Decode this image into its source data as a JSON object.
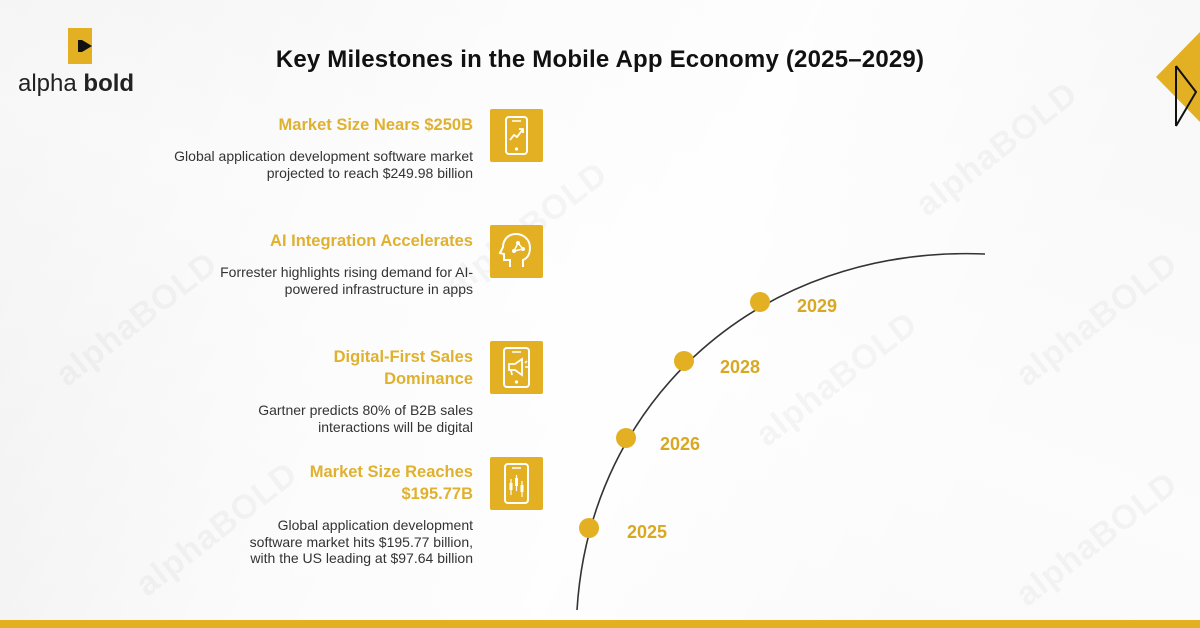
{
  "brand": {
    "logo_regular": "alpha",
    "logo_bold": "bold",
    "accent": "#e3b023",
    "text_color": "#111111"
  },
  "title": "Key Milestones in the Mobile App Economy (2025–2029)",
  "watermark_text": "alphaBOLD",
  "milestones": [
    {
      "heading": "Market Size Nears $250B",
      "description": "Global application development software market projected to reach $249.98 billion",
      "icon": "phone-growth-chart-icon"
    },
    {
      "heading": "AI Integration Accelerates",
      "description": "Forrester highlights rising demand for AI-powered infrastructure in apps",
      "icon": "ai-head-icon"
    },
    {
      "heading": "Digital-First Sales Dominance",
      "description": "Gartner predicts 80% of B2B sales interactions will be digital",
      "icon": "phone-megaphone-icon"
    },
    {
      "heading": "Market Size Reaches $195.77B",
      "description": "Global application development software market hits $195.77 billion, with the US leading at $97.64 billion",
      "icon": "phone-candlestick-icon"
    }
  ],
  "timeline": {
    "years": [
      "2025",
      "2026",
      "2028",
      "2029"
    ],
    "dot_color": "#e3b023",
    "line_color": "#333333"
  }
}
